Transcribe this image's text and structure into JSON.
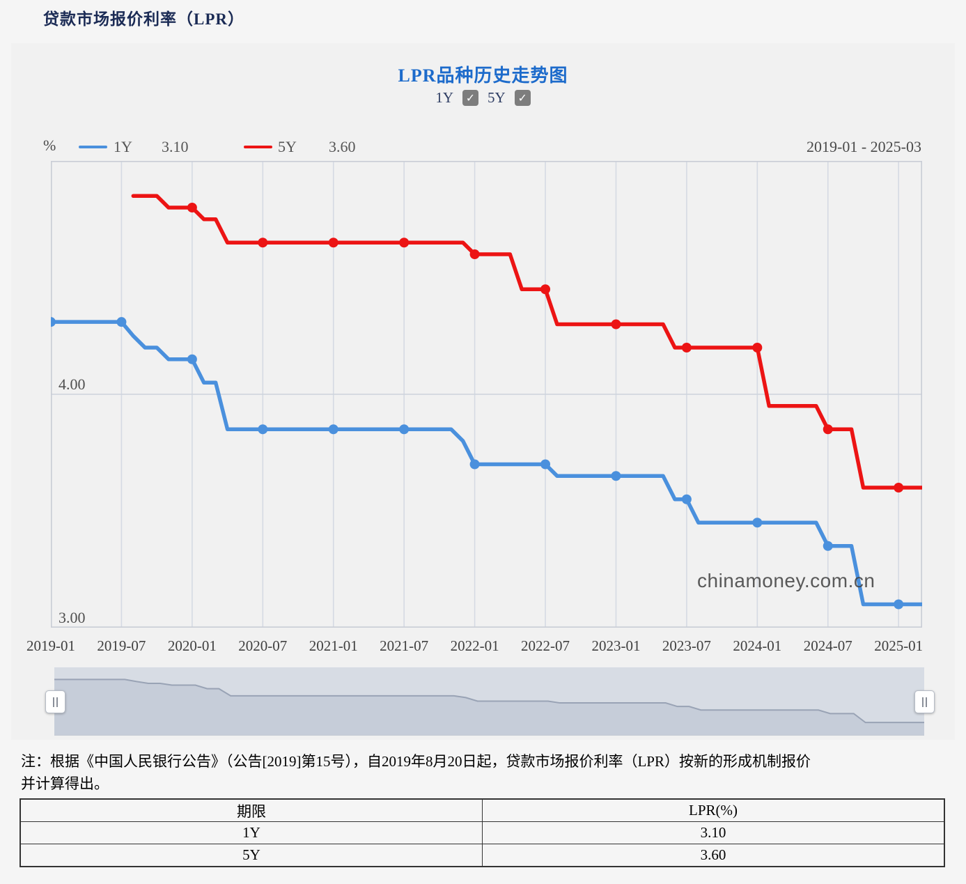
{
  "page": {
    "title": "贷款市场报价利率（LPR）"
  },
  "icons": {
    "check": "✓",
    "handle": "||"
  },
  "chart": {
    "title": "LPR品种历史走势图",
    "controls": [
      {
        "label": "1Y",
        "checked": true
      },
      {
        "label": "5Y",
        "checked": true
      }
    ],
    "unit_label": "%",
    "date_range": "2019-01 - 2025-03",
    "watermark": "chinamoney.com.cn",
    "legend": [
      {
        "label": "1Y",
        "value": "3.10",
        "color": "#4a90dd"
      },
      {
        "label": "5Y",
        "value": "3.60",
        "color": "#ec1414"
      }
    ]
  },
  "chart_data": {
    "type": "line",
    "title": "LPR品种历史走势图",
    "xlabel": "",
    "ylabel": "%",
    "x_start": "2019-01",
    "x_end": "2025-03",
    "months_total": 74,
    "ylim": [
      3.0,
      5.0
    ],
    "y_gridline_values": [
      4.0,
      3.0
    ],
    "y_grid_labels": [
      "4.00",
      "3.00"
    ],
    "x_tick_months": [
      0,
      6,
      12,
      18,
      24,
      30,
      36,
      42,
      48,
      54,
      60,
      66,
      72
    ],
    "x_tick_labels": [
      "2019-01",
      "2019-07",
      "2020-01",
      "2020-07",
      "2021-01",
      "2021-07",
      "2022-01",
      "2022-07",
      "2023-01",
      "2023-07",
      "2024-01",
      "2024-07",
      "2025-01"
    ],
    "markers_at_ticks": true,
    "grid": true,
    "legend_position": "top-left",
    "series": [
      {
        "name": "1Y",
        "color": "#4a90dd",
        "current": 3.1,
        "steps": [
          {
            "from": "2019-01",
            "to": "2019-07",
            "t0": 0,
            "t1": 6,
            "value": 4.31
          },
          {
            "from": "2019-08",
            "to": "2019-08",
            "t0": 7,
            "t1": 7,
            "value": 4.25
          },
          {
            "from": "2019-09",
            "to": "2019-10",
            "t0": 8,
            "t1": 9,
            "value": 4.2
          },
          {
            "from": "2019-11",
            "to": "2020-01",
            "t0": 10,
            "t1": 12,
            "value": 4.15
          },
          {
            "from": "2020-02",
            "to": "2020-03",
            "t0": 13,
            "t1": 14,
            "value": 4.05
          },
          {
            "from": "2020-04",
            "to": "2021-11",
            "t0": 15,
            "t1": 34,
            "value": 3.85
          },
          {
            "from": "2021-12",
            "to": "2021-12",
            "t0": 35,
            "t1": 35,
            "value": 3.8
          },
          {
            "from": "2022-01",
            "to": "2022-07",
            "t0": 36,
            "t1": 42,
            "value": 3.7
          },
          {
            "from": "2022-08",
            "to": "2023-05",
            "t0": 43,
            "t1": 52,
            "value": 3.65
          },
          {
            "from": "2023-06",
            "to": "2023-07",
            "t0": 53,
            "t1": 54,
            "value": 3.55
          },
          {
            "from": "2023-08",
            "to": "2024-06",
            "t0": 55,
            "t1": 65,
            "value": 3.45
          },
          {
            "from": "2024-07",
            "to": "2024-09",
            "t0": 66,
            "t1": 68,
            "value": 3.35
          },
          {
            "from": "2024-10",
            "to": "2025-03",
            "t0": 69,
            "t1": 74,
            "value": 3.1
          }
        ]
      },
      {
        "name": "5Y",
        "color": "#ec1414",
        "current": 3.6,
        "steps": [
          {
            "from": "2019-08",
            "to": "2019-10",
            "t0": 7,
            "t1": 9,
            "value": 4.85
          },
          {
            "from": "2019-11",
            "to": "2020-01",
            "t0": 10,
            "t1": 12,
            "value": 4.8
          },
          {
            "from": "2020-02",
            "to": "2020-03",
            "t0": 13,
            "t1": 14,
            "value": 4.75
          },
          {
            "from": "2020-04",
            "to": "2021-12",
            "t0": 15,
            "t1": 35,
            "value": 4.65
          },
          {
            "from": "2022-01",
            "to": "2022-04",
            "t0": 36,
            "t1": 39,
            "value": 4.6
          },
          {
            "from": "2022-05",
            "to": "2022-07",
            "t0": 40,
            "t1": 42,
            "value": 4.45
          },
          {
            "from": "2022-08",
            "to": "2023-05",
            "t0": 43,
            "t1": 52,
            "value": 4.3
          },
          {
            "from": "2023-06",
            "to": "2024-01",
            "t0": 53,
            "t1": 60,
            "value": 4.2
          },
          {
            "from": "2024-02",
            "to": "2024-06",
            "t0": 61,
            "t1": 65,
            "value": 3.95
          },
          {
            "from": "2024-07",
            "to": "2024-09",
            "t0": 66,
            "t1": 68,
            "value": 3.85
          },
          {
            "from": "2024-10",
            "to": "2025-03",
            "t0": 69,
            "t1": 74,
            "value": 3.6
          }
        ]
      }
    ]
  },
  "navigator": {
    "bg": "#d7dce4",
    "area_fill": "#c6cdd9",
    "line_color": "#99a3b5",
    "y_domain": [
      2.75,
      4.65
    ],
    "source_series": "1Y"
  },
  "plot_style": {
    "border": "#c9cdd6",
    "grid_v": "#d5dae3",
    "grid_h": "#cdd3dc",
    "line_width": 5.5,
    "marker_radius": 7
  },
  "note": {
    "line1": "注：根据《中国人民银行公告》（公告[2019]第15号），自2019年8月20日起，贷款市场报价利率（LPR）按新的形成机制报价",
    "line2": "并计算得出。"
  },
  "table": {
    "headers": [
      "期限",
      "LPR(%)"
    ],
    "rows": [
      [
        "1Y",
        "3.10"
      ],
      [
        "5Y",
        "3.60"
      ]
    ]
  }
}
